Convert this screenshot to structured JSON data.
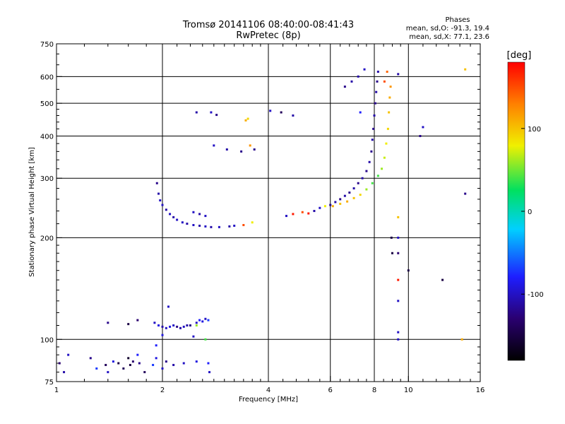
{
  "chart_data": {
    "type": "scatter",
    "title": "Tromsø 20141106 08:40:00-08:41:43",
    "subtitle": "RwPretec (8p)",
    "xlabel": "Frequency [MHz]",
    "ylabel": "Stationary phase Virtual Height [km]",
    "x_scale": "log",
    "y_scale": "log",
    "xlim": [
      1,
      16
    ],
    "ylim": [
      75,
      750
    ],
    "x_ticks": [
      1,
      2,
      4,
      6,
      8,
      10,
      16
    ],
    "x_tick_labels": [
      "1",
      "2",
      "4",
      "6",
      "8",
      "10",
      "16"
    ],
    "y_ticks": [
      75,
      100,
      200,
      300,
      400,
      500,
      600,
      750
    ],
    "y_tick_labels": [
      "75",
      "100",
      "200",
      "300",
      "400",
      "500",
      "600",
      "750"
    ],
    "grid": true,
    "phase_info": {
      "heading": "Phases",
      "line1": "mean, sd,O: -91.3, 19.4",
      "line2": "mean, sd,X:  77.1, 23.6"
    },
    "colorbar": {
      "label": "[deg]",
      "range": [
        -180,
        180
      ],
      "ticks": [
        100,
        0,
        -100
      ],
      "tick_labels": [
        "100",
        "0",
        "-100"
      ]
    },
    "series": [
      {
        "points": [
          [
            1.02,
            85,
            -130
          ],
          [
            1.05,
            80,
            -110
          ],
          [
            1.08,
            90,
            -100
          ],
          [
            1.25,
            88,
            -120
          ],
          [
            1.3,
            82,
            -70
          ],
          [
            1.38,
            84,
            -140
          ],
          [
            1.4,
            80,
            -100
          ],
          [
            1.45,
            86,
            -90
          ],
          [
            1.5,
            85,
            -150
          ],
          [
            1.55,
            82,
            -140
          ],
          [
            1.6,
            88,
            -160
          ],
          [
            1.62,
            84,
            -150
          ],
          [
            1.65,
            86,
            -130
          ],
          [
            1.7,
            90,
            -80
          ],
          [
            1.72,
            85,
            -120
          ],
          [
            1.78,
            80,
            -140
          ],
          [
            1.88,
            84,
            -70
          ],
          [
            1.92,
            88,
            -90
          ],
          [
            2.0,
            82,
            -100
          ],
          [
            2.05,
            86,
            -120
          ],
          [
            2.15,
            84,
            -110
          ],
          [
            2.3,
            85,
            -100
          ],
          [
            2.5,
            86,
            -90
          ],
          [
            2.7,
            85,
            -80
          ],
          [
            2.72,
            80,
            -100
          ],
          [
            1.4,
            112,
            -120
          ],
          [
            1.6,
            111,
            -150
          ],
          [
            1.7,
            114,
            -130
          ],
          [
            1.9,
            112,
            -100
          ],
          [
            1.95,
            110,
            -90
          ],
          [
            2.0,
            109,
            -110
          ],
          [
            2.05,
            108,
            -100
          ],
          [
            2.1,
            109,
            -90
          ],
          [
            2.15,
            110,
            -100
          ],
          [
            2.2,
            109,
            -120
          ],
          [
            2.25,
            108,
            -110
          ],
          [
            2.3,
            109,
            -100
          ],
          [
            2.4,
            110,
            -120
          ],
          [
            2.5,
            112,
            -100
          ],
          [
            2.55,
            114,
            -80
          ],
          [
            2.6,
            113,
            -90
          ],
          [
            2.65,
            115,
            -100
          ],
          [
            2.7,
            114,
            -70
          ],
          [
            2.08,
            125,
            -100
          ],
          [
            2.5,
            110,
            60
          ],
          [
            2.65,
            100,
            40
          ],
          [
            2.0,
            103,
            -90
          ],
          [
            1.92,
            96,
            -80
          ],
          [
            2.35,
            110,
            -110
          ],
          [
            2.45,
            102,
            -100
          ]
        ]
      },
      {
        "points": [
          [
            1.93,
            290,
            -120
          ],
          [
            1.95,
            270,
            -110
          ],
          [
            1.97,
            258,
            -100
          ],
          [
            2.0,
            250,
            -100
          ],
          [
            2.05,
            242,
            -110
          ],
          [
            2.1,
            235,
            -100
          ],
          [
            2.15,
            230,
            -110
          ],
          [
            2.2,
            226,
            -100
          ],
          [
            2.28,
            222,
            -100
          ],
          [
            2.35,
            220,
            -110
          ],
          [
            2.45,
            218,
            -100
          ],
          [
            2.55,
            217,
            -110
          ],
          [
            2.65,
            216,
            -100
          ],
          [
            2.75,
            215,
            -110
          ],
          [
            2.9,
            215,
            -100
          ],
          [
            2.45,
            238,
            -100
          ],
          [
            2.55,
            235,
            -110
          ],
          [
            2.65,
            232,
            -100
          ],
          [
            3.1,
            216,
            -110
          ],
          [
            3.2,
            217,
            -100
          ],
          [
            3.4,
            218,
            150
          ],
          [
            3.6,
            222,
            80
          ],
          [
            2.5,
            470,
            -110
          ],
          [
            2.75,
            470,
            -100
          ],
          [
            2.85,
            462,
            -120
          ],
          [
            2.8,
            375,
            -100
          ],
          [
            3.05,
            365,
            -110
          ],
          [
            3.35,
            360,
            -120
          ],
          [
            3.45,
            445,
            110
          ],
          [
            3.5,
            450,
            90
          ],
          [
            3.55,
            375,
            120
          ],
          [
            3.65,
            365,
            -120
          ],
          [
            4.05,
            475,
            -100
          ],
          [
            4.35,
            470,
            -140
          ],
          [
            4.7,
            460,
            -110
          ]
        ]
      },
      {
        "points": [
          [
            4.5,
            232,
            -100
          ],
          [
            4.7,
            235,
            170
          ],
          [
            5.0,
            238,
            150
          ],
          [
            5.2,
            236,
            170
          ],
          [
            5.4,
            240,
            -110
          ],
          [
            5.6,
            245,
            -100
          ],
          [
            5.8,
            248,
            80
          ],
          [
            6.0,
            250,
            -120
          ],
          [
            6.2,
            255,
            -110
          ],
          [
            6.4,
            260,
            -120
          ],
          [
            6.6,
            266,
            -110
          ],
          [
            6.8,
            272,
            -120
          ],
          [
            7.0,
            280,
            -110
          ],
          [
            7.2,
            290,
            -120
          ],
          [
            7.4,
            300,
            -110
          ],
          [
            7.6,
            315,
            -120
          ],
          [
            7.75,
            335,
            -110
          ],
          [
            7.85,
            360,
            -120
          ],
          [
            7.9,
            390,
            -110
          ],
          [
            7.95,
            420,
            -120
          ],
          [
            8.0,
            460,
            -110
          ],
          [
            8.05,
            500,
            -120
          ],
          [
            8.1,
            540,
            -110
          ],
          [
            8.15,
            580,
            -120
          ],
          [
            8.2,
            620,
            -110
          ],
          [
            6.1,
            248,
            110
          ],
          [
            6.4,
            252,
            100
          ],
          [
            6.7,
            256,
            110
          ],
          [
            7.0,
            262,
            100
          ],
          [
            7.3,
            268,
            90
          ],
          [
            7.6,
            278,
            60
          ],
          [
            7.9,
            290,
            40
          ],
          [
            8.2,
            305,
            40
          ],
          [
            8.4,
            320,
            60
          ],
          [
            8.55,
            345,
            70
          ],
          [
            8.65,
            380,
            80
          ],
          [
            8.75,
            420,
            90
          ],
          [
            8.8,
            470,
            100
          ],
          [
            8.85,
            520,
            110
          ],
          [
            8.9,
            560,
            120
          ],
          [
            8.55,
            580,
            150
          ],
          [
            8.7,
            620,
            140
          ],
          [
            9.35,
            610,
            -110
          ],
          [
            9.35,
            230,
            100
          ],
          [
            9.35,
            200,
            -100
          ],
          [
            9.35,
            180,
            -130
          ],
          [
            9.35,
            150,
            170
          ],
          [
            9.35,
            130,
            -100
          ],
          [
            9.35,
            100,
            -100
          ],
          [
            9.35,
            105,
            -100
          ],
          [
            8.95,
            200,
            -150
          ],
          [
            9.0,
            180,
            -150
          ],
          [
            6.6,
            560,
            -120
          ],
          [
            6.9,
            580,
            -110
          ],
          [
            7.2,
            600,
            -110
          ],
          [
            7.5,
            630,
            -100
          ],
          [
            10.8,
            400,
            -120
          ],
          [
            11.0,
            425,
            -100
          ],
          [
            12.5,
            150,
            -150
          ],
          [
            10.0,
            160,
            -150
          ],
          [
            14.5,
            630,
            100
          ],
          [
            14.5,
            270,
            -120
          ],
          [
            14.2,
            100,
            110
          ],
          [
            7.3,
            470,
            -80
          ]
        ]
      }
    ]
  }
}
